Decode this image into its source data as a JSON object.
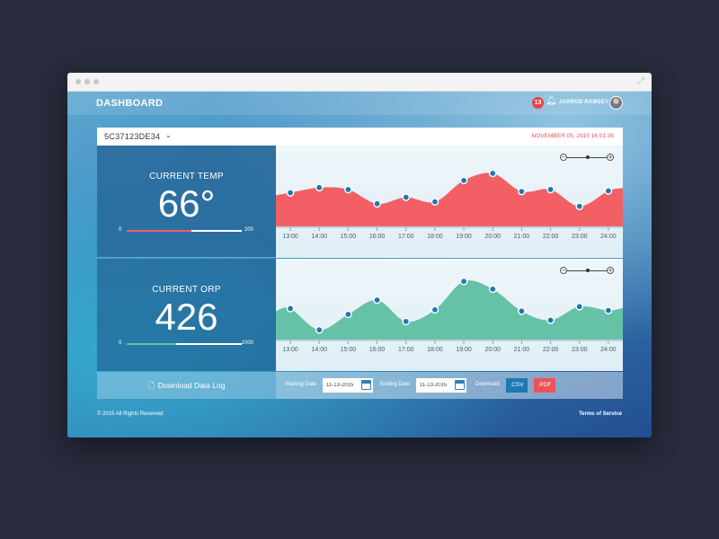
{
  "header": {
    "title": "DASHBOARD",
    "notification_count": "13",
    "user_name": "JARROD RAMSEY"
  },
  "device": {
    "id": "5C37123DE34",
    "datetime": "NOVEMBER 05, 2015 16:01:36"
  },
  "metrics": {
    "temp": {
      "label": "CURRENT TEMP",
      "value": "66°",
      "min": "0",
      "max": "200",
      "fill_fraction": 0.56,
      "color": "#f05f62"
    },
    "orp": {
      "label": "CURRENT ORP",
      "value": "426",
      "min": "0",
      "max": "1000",
      "fill_fraction": 0.43,
      "color": "#5ec1a3"
    }
  },
  "colors": {
    "temp_area": "#f26065",
    "orp_area": "#66c2a6",
    "point": "#1f78b4",
    "csv_button": "#1f79b4",
    "pdf_button": "#ef5357"
  },
  "chart_data": [
    {
      "type": "area",
      "categories": [
        "13:00",
        "14:00",
        "15:00",
        "16:00",
        "17:00",
        "18:00",
        "19:00",
        "20:00",
        "21:00",
        "22:00",
        "23:00",
        "24:00"
      ],
      "ylim": [
        0,
        100
      ],
      "series": [
        {
          "points_x": [
            0.5,
            1.5,
            2.5,
            3.5,
            4.5,
            5.5,
            6.5,
            7.5,
            8.5,
            9.5,
            10.5,
            11.5
          ],
          "values": [
            52,
            60,
            57,
            35,
            45,
            38,
            71,
            82,
            54,
            57,
            31,
            55
          ]
        }
      ]
    },
    {
      "type": "area",
      "categories": [
        "13:00",
        "14:00",
        "15:00",
        "16:00",
        "17:00",
        "18:00",
        "19:00",
        "20:00",
        "21:00",
        "22:00",
        "23:00",
        "24:00"
      ],
      "ylim": [
        0,
        100
      ],
      "series": [
        {
          "points_x": [
            0.5,
            1.5,
            2.5,
            3.5,
            4.5,
            5.5,
            6.5,
            7.5,
            8.5,
            9.5,
            10.5,
            11.5
          ],
          "values": [
            48,
            15,
            39,
            61,
            28,
            46,
            90,
            78,
            44,
            30,
            51,
            45
          ]
        }
      ]
    }
  ],
  "footer": {
    "download_log": "Download Data Log",
    "starting_date_label": "Starting Date",
    "starting_date": "11-13-2015",
    "ending_date_label": "Ending Date",
    "ending_date": "11-13-2015",
    "download_label": "Download",
    "csv": ".CSV",
    "pdf": ".PDF",
    "copyright": "© 2015 All Rights Reserved",
    "terms": "Terms of Service"
  }
}
